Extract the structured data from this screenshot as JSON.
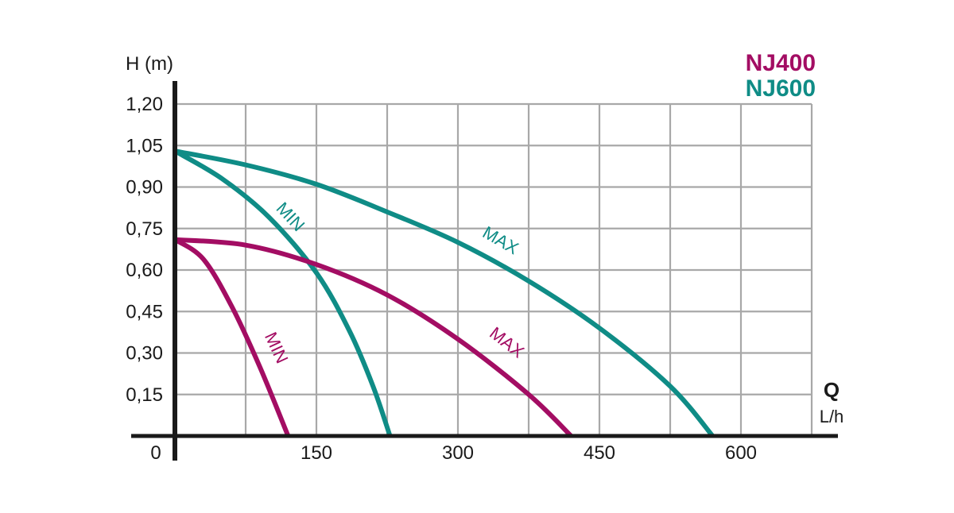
{
  "chart_data": {
    "type": "line",
    "ylabel": "H (m)",
    "xlabel": "Q",
    "xunit": "L/h",
    "origin_label": "0",
    "xlim": [
      0,
      675
    ],
    "ylim": [
      0,
      1.2
    ],
    "x_ticks": [
      150,
      300,
      450,
      600
    ],
    "x_tick_labels": [
      "150",
      "300",
      "450",
      "600"
    ],
    "y_ticks": [
      0.15,
      0.3,
      0.45,
      0.6,
      0.75,
      0.9,
      1.05,
      1.2
    ],
    "y_tick_labels": [
      "0,15",
      "0,30",
      "0,45",
      "0,60",
      "0,75",
      "0,90",
      "1,05",
      "1,20"
    ],
    "x_grid_step": 75,
    "grid": true,
    "legend_position": "top-right",
    "legend": [
      {
        "label": "NJ400",
        "color": "#a30d63"
      },
      {
        "label": "NJ600",
        "color": "#0f8c86"
      }
    ],
    "series": [
      {
        "name": "NJ600",
        "mode": "MAX",
        "curve_label": "MAX",
        "color": "#0f8c86",
        "x": [
          0,
          75,
          150,
          225,
          300,
          375,
          450,
          525,
          570
        ],
        "y": [
          1.03,
          0.98,
          0.91,
          0.81,
          0.7,
          0.56,
          0.39,
          0.18,
          0.0
        ]
      },
      {
        "name": "NJ600",
        "mode": "MIN",
        "curve_label": "MIN",
        "color": "#0f8c86",
        "x": [
          0,
          50,
          100,
          150,
          185,
          210,
          228
        ],
        "y": [
          1.03,
          0.93,
          0.79,
          0.59,
          0.38,
          0.18,
          0.0
        ]
      },
      {
        "name": "NJ400",
        "mode": "MAX",
        "curve_label": "MAX",
        "color": "#a30d63",
        "x": [
          0,
          75,
          150,
          225,
          300,
          375,
          420
        ],
        "y": [
          0.71,
          0.69,
          0.62,
          0.51,
          0.35,
          0.15,
          0.0
        ]
      },
      {
        "name": "NJ400",
        "mode": "MIN",
        "curve_label": "MIN",
        "color": "#a30d63",
        "x": [
          0,
          30,
          60,
          90,
          120
        ],
        "y": [
          0.71,
          0.64,
          0.47,
          0.25,
          0.0
        ]
      }
    ]
  }
}
